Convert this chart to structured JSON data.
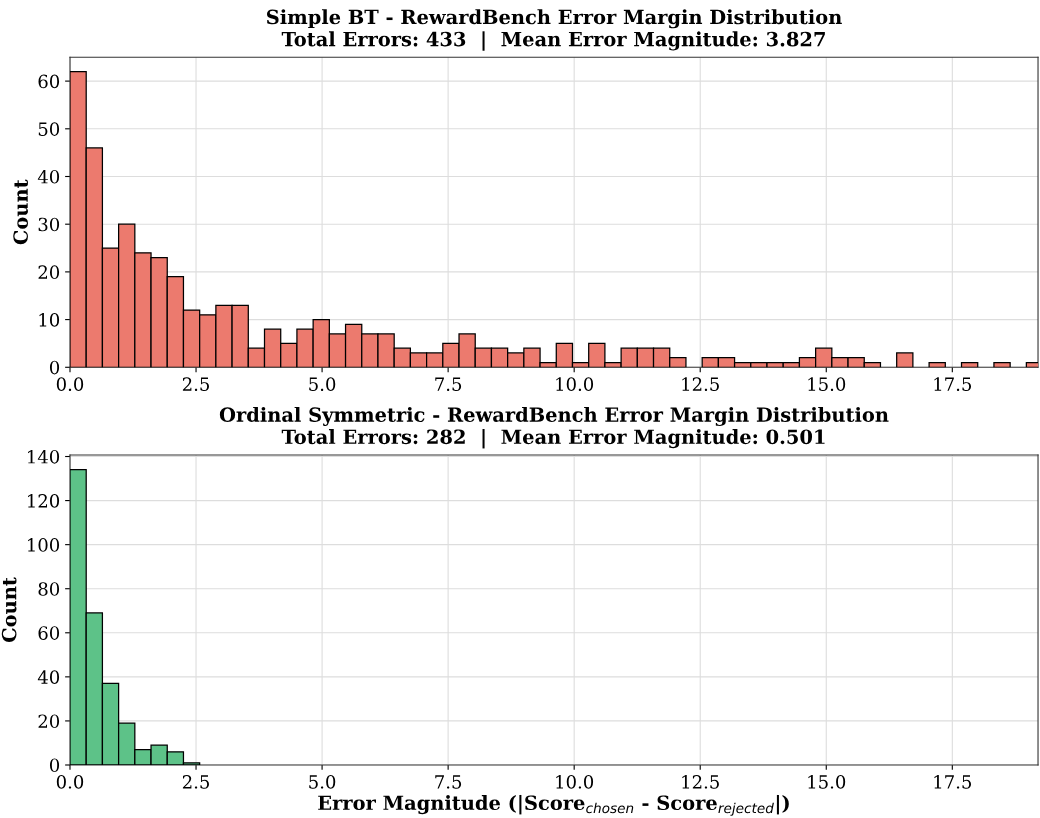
{
  "chart_data": [
    {
      "type": "histogram",
      "title": "Simple BT - RewardBench Error Margin Distribution\nTotal Errors: 433  |  Mean Error Magnitude: 3.827",
      "ylabel": "Count",
      "color": "#ec7a6e",
      "grid": true,
      "bins": [
        0,
        0.3215,
        0.643,
        0.9645,
        1.286,
        1.6075,
        1.929,
        2.2505,
        2.572,
        2.8935,
        3.215,
        3.5365,
        3.858,
        4.1795,
        4.501,
        4.8225,
        5.144,
        5.4655,
        5.787,
        6.1085,
        6.43,
        6.7515,
        7.073,
        7.3945,
        7.716,
        8.0375,
        8.359,
        8.6805,
        9.002,
        9.3235,
        9.645,
        9.9665,
        10.288,
        10.6095,
        10.931,
        11.2525,
        11.574,
        11.8955,
        12.217,
        12.5385,
        12.86,
        13.1815,
        13.503,
        13.8245,
        14.146,
        14.4675,
        14.789,
        15.1105,
        15.432,
        15.7535,
        16.075,
        16.3965,
        16.718,
        17.0395,
        17.361,
        17.6825,
        18.004,
        18.3255,
        18.647,
        18.9685,
        19.29
      ],
      "values": [
        62,
        46,
        25,
        30,
        24,
        23,
        19,
        12,
        11,
        13,
        13,
        4,
        8,
        5,
        8,
        10,
        7,
        9,
        7,
        7,
        4,
        3,
        3,
        5,
        7,
        4,
        4,
        3,
        4,
        1,
        5,
        1,
        5,
        1,
        4,
        4,
        4,
        2,
        0,
        2,
        2,
        1,
        1,
        1,
        1,
        2,
        4,
        2,
        2,
        1,
        0,
        3,
        0,
        1,
        0,
        1,
        0,
        1,
        0,
        1
      ],
      "xlim": [
        0,
        19.2
      ],
      "xticks": [
        {
          "value": 0,
          "label": "0.0"
        },
        {
          "value": 2.5,
          "label": "2.5"
        },
        {
          "value": 5,
          "label": "5.0"
        },
        {
          "value": 7.5,
          "label": "7.5"
        },
        {
          "value": 10,
          "label": "10.0"
        },
        {
          "value": 12.5,
          "label": "12.5"
        },
        {
          "value": 15,
          "label": "15.0"
        },
        {
          "value": 17.5,
          "label": "17.5"
        }
      ],
      "ylim": [
        0,
        65
      ],
      "yticks": [
        0,
        10,
        20,
        30,
        40,
        50,
        60
      ]
    },
    {
      "type": "histogram",
      "title": "Ordinal Symmetric - RewardBench Error Margin Distribution\nTotal Errors: 282  |  Mean Error Magnitude: 0.501",
      "ylabel": "Count",
      "xlabel": "Error Magnitude (|Score$_{chosen}$ - Score$_{rejected}$|)",
      "color": "#5dc288",
      "grid": true,
      "bins": [
        0,
        0.3215,
        0.643,
        0.9645,
        1.286,
        1.6075,
        1.929,
        2.2505,
        2.572,
        2.8935,
        3.215,
        3.5365,
        3.858,
        4.1795,
        4.501,
        4.8225,
        5.144,
        5.4655,
        5.787,
        6.1085,
        6.43,
        6.7515,
        7.073,
        7.3945,
        7.716,
        8.0375,
        8.359,
        8.6805,
        9.002,
        9.3235,
        9.645,
        9.9665,
        10.288,
        10.6095,
        10.931,
        11.2525,
        11.574,
        11.8955,
        12.217,
        12.5385,
        12.86,
        13.1815,
        13.503,
        13.8245,
        14.146,
        14.4675,
        14.789,
        15.1105,
        15.432,
        15.7535,
        16.075,
        16.3965,
        16.718,
        17.0395,
        17.361,
        17.6825,
        18.004,
        18.3255,
        18.647,
        18.9685,
        19.29
      ],
      "values": [
        134,
        69,
        37,
        19,
        7,
        9,
        6,
        1,
        0,
        0,
        0,
        0,
        0,
        0,
        0,
        0,
        0,
        0,
        0,
        0,
        0,
        0,
        0,
        0,
        0,
        0,
        0,
        0,
        0,
        0,
        0,
        0,
        0,
        0,
        0,
        0,
        0,
        0,
        0,
        0,
        0,
        0,
        0,
        0,
        0,
        0,
        0,
        0,
        0,
        0,
        0,
        0,
        0,
        0,
        0,
        0,
        0,
        0,
        0,
        0
      ],
      "xlim": [
        0,
        19.2
      ],
      "xticks": [
        {
          "value": 0,
          "label": "0.0"
        },
        {
          "value": 2.5,
          "label": "2.5"
        },
        {
          "value": 5,
          "label": "5.0"
        },
        {
          "value": 7.5,
          "label": "7.5"
        },
        {
          "value": 10,
          "label": "10.0"
        },
        {
          "value": 12.5,
          "label": "12.5"
        },
        {
          "value": 15,
          "label": "15.0"
        },
        {
          "value": 17.5,
          "label": "17.5"
        }
      ],
      "ylim": [
        0,
        140.7
      ],
      "yticks": [
        0,
        20,
        40,
        60,
        80,
        100,
        120,
        140
      ]
    }
  ]
}
